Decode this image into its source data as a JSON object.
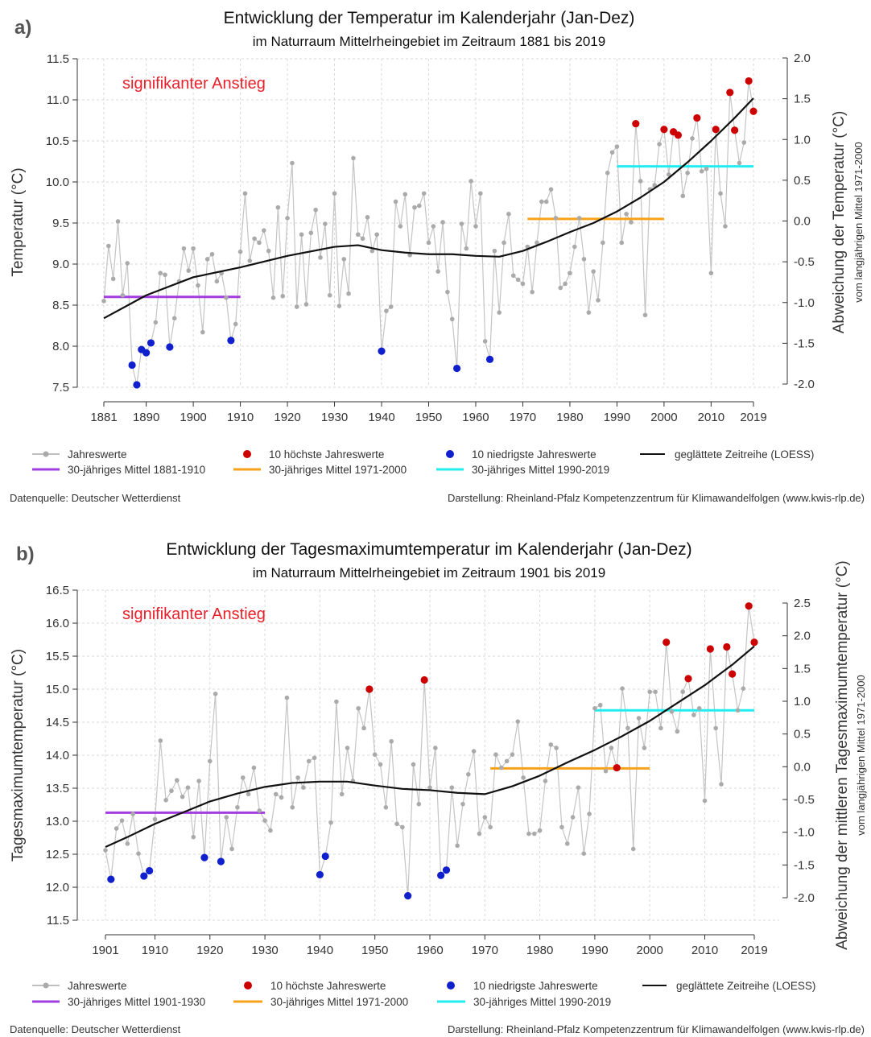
{
  "chart_data": [
    {
      "type": "line",
      "panel_label": "a)",
      "title": "Entwicklung der Temperatur im Kalenderjahr (Jan-Dez)",
      "subtitle": "im Naturraum Mittelrheingebiet im Zeitraum 1881 bis 2019",
      "annotation": "signifikanter Anstieg",
      "ylabel": "Temperatur (°C)",
      "y2label": "Abweichung der Temperatur (°C)",
      "y2label_small": "vom langjährigen Mittel 1971-2000",
      "xlim": [
        1881,
        2019
      ],
      "ylim": [
        7.5,
        11.5
      ],
      "y2lim": [
        -2.0,
        2.0
      ],
      "x_ticks": [
        "1881",
        "1890",
        "1900",
        "1910",
        "1920",
        "1930",
        "1940",
        "1950",
        "1960",
        "1970",
        "1980",
        "1990",
        "2000",
        "2010",
        "2019"
      ],
      "y_ticks": [
        "7.5",
        "8.0",
        "8.5",
        "9.0",
        "9.5",
        "10.0",
        "10.5",
        "11.0",
        "11.5"
      ],
      "y2_ticks": [
        "-2.0",
        "-1.5",
        "-1.0",
        "-0.5",
        "0.0",
        "0.5",
        "1.0",
        "1.5",
        "2.0"
      ],
      "grid": true,
      "legend_position": "bottom",
      "colors": {
        "annual": "#aaaaaa",
        "highest": "#cc0000",
        "lowest": "#1020cc",
        "loess": "#111111",
        "mean1": "#a23de0",
        "mean2": "#f7a21a",
        "mean3": "#22eef2",
        "annotation": "#e8202a"
      },
      "years_start": 1881,
      "annual_values": [
        8.55,
        9.22,
        8.82,
        9.52,
        8.62,
        9.01,
        7.77,
        7.53,
        7.96,
        7.92,
        8.04,
        8.29,
        8.89,
        8.87,
        7.99,
        8.34,
        8.79,
        9.19,
        8.92,
        9.19,
        8.74,
        8.17,
        9.06,
        9.12,
        8.79,
        8.89,
        8.59,
        8.07,
        8.27,
        9.15,
        9.86,
        9.04,
        9.31,
        9.26,
        9.41,
        9.16,
        8.59,
        9.69,
        8.61,
        9.56,
        10.23,
        8.48,
        9.36,
        8.51,
        9.38,
        9.66,
        9.08,
        9.49,
        8.62,
        9.86,
        8.49,
        9.06,
        8.64,
        10.29,
        9.36,
        9.31,
        9.57,
        9.16,
        9.36,
        7.94,
        8.43,
        8.48,
        9.76,
        9.46,
        9.85,
        9.11,
        9.69,
        9.71,
        9.86,
        9.26,
        9.46,
        8.91,
        9.51,
        8.66,
        8.33,
        7.73,
        9.49,
        9.19,
        10.01,
        9.46,
        9.86,
        8.06,
        7.84,
        9.16,
        8.41,
        9.26,
        9.61,
        8.86,
        8.81,
        8.76,
        9.21,
        8.66,
        9.26,
        9.76,
        9.76,
        9.91,
        9.56,
        8.71,
        8.76,
        8.89,
        9.21,
        9.56,
        9.06,
        8.41,
        8.91,
        8.56,
        9.26,
        10.11,
        10.36,
        10.43,
        9.26,
        9.61,
        9.51,
        10.71,
        10.01,
        8.38,
        9.91,
        9.96,
        10.46,
        10.64,
        10.09,
        10.61,
        10.57,
        9.83,
        10.11,
        10.53,
        10.78,
        10.13,
        10.16,
        8.89,
        10.64,
        9.86,
        9.46,
        11.09,
        10.63,
        10.23,
        10.48,
        11.23,
        10.86
      ],
      "highest_years": [
        1994,
        2000,
        2002,
        2003,
        2007,
        2011,
        2014,
        2015,
        2018,
        2019
      ],
      "lowest_years": [
        1887,
        1888,
        1889,
        1890,
        1891,
        1895,
        1908,
        1940,
        1956,
        1963
      ],
      "loess_points": [
        [
          1881,
          8.34
        ],
        [
          1890,
          8.62
        ],
        [
          1900,
          8.84
        ],
        [
          1910,
          8.96
        ],
        [
          1920,
          9.1
        ],
        [
          1930,
          9.21
        ],
        [
          1935,
          9.23
        ],
        [
          1940,
          9.17
        ],
        [
          1945,
          9.14
        ],
        [
          1950,
          9.12
        ],
        [
          1955,
          9.12
        ],
        [
          1960,
          9.1
        ],
        [
          1965,
          9.09
        ],
        [
          1970,
          9.16
        ],
        [
          1975,
          9.27
        ],
        [
          1980,
          9.39
        ],
        [
          1985,
          9.5
        ],
        [
          1990,
          9.64
        ],
        [
          1995,
          9.81
        ],
        [
          2000,
          10.0
        ],
        [
          2005,
          10.24
        ],
        [
          2010,
          10.5
        ],
        [
          2015,
          10.78
        ],
        [
          2019,
          11.02
        ]
      ],
      "means": [
        {
          "label": "30-jähriges Mittel 1881-1910",
          "x0": 1881,
          "x1": 1910,
          "value": 8.6
        },
        {
          "label": "30-jähriges Mittel 1971-2000",
          "x0": 1971,
          "x1": 2000,
          "value": 9.55
        },
        {
          "label": "30-jähriges Mittel 1990-2019",
          "x0": 1990,
          "x1": 2019,
          "value": 10.19
        }
      ],
      "legend": {
        "annual": "Jahreswerte",
        "highest": "10 höchste Jahreswerte",
        "lowest": "10 niedrigste Jahreswerte",
        "loess": "geglättete Zeitreihe (LOESS)"
      },
      "source": "Datenquelle: Deutscher Wetterdienst",
      "credit": "Darstellung: Rheinland-Pfalz Kompetenzzentrum für Klimawandelfolgen (www.kwis-rlp.de)"
    },
    {
      "type": "line",
      "panel_label": "b)",
      "title": "Entwicklung der Tagesmaximumtemperatur im Kalenderjahr (Jan-Dez)",
      "subtitle": "im Naturraum Mittelrheingebiet im Zeitraum 1901 bis 2019",
      "annotation": "signifikanter Anstieg",
      "ylabel": "Tagesmaximumtemperatur (°C)",
      "y2label": "Abweichung der mittleren Tagesmaximumtemperatur (°C)",
      "y2label_small": "vom langjährigen Mittel 1971-2000",
      "xlim": [
        1901,
        2019
      ],
      "ylim": [
        11.5,
        16.5
      ],
      "y2lim": [
        -2.0,
        2.5
      ],
      "x_ticks": [
        "1901",
        "1910",
        "1920",
        "1930",
        "1940",
        "1950",
        "1960",
        "1970",
        "1980",
        "1990",
        "2000",
        "2010",
        "2019"
      ],
      "y_ticks": [
        "11.5",
        "12.0",
        "12.5",
        "13.0",
        "13.5",
        "14.0",
        "14.5",
        "15.0",
        "15.5",
        "16.0",
        "16.5"
      ],
      "y2_ticks": [
        "-2.0",
        "-1.5",
        "-1.0",
        "-0.5",
        "0.0",
        "0.5",
        "1.0",
        "1.5",
        "2.0",
        "2.5"
      ],
      "grid": true,
      "legend_position": "bottom",
      "colors": {
        "annual": "#aaaaaa",
        "highest": "#cc0000",
        "lowest": "#1020cc",
        "loess": "#111111",
        "mean1": "#a23de0",
        "mean2": "#f7a21a",
        "mean3": "#22eef2",
        "annotation": "#e8202a"
      },
      "years_start": 1901,
      "annual_values": [
        12.56,
        12.12,
        12.89,
        13.01,
        12.66,
        13.11,
        12.51,
        12.17,
        12.25,
        13.03,
        14.22,
        13.32,
        13.46,
        13.62,
        13.37,
        13.51,
        12.76,
        13.61,
        12.45,
        13.91,
        14.93,
        12.39,
        13.06,
        12.58,
        13.21,
        13.66,
        13.41,
        13.81,
        13.16,
        13.01,
        12.86,
        13.41,
        13.36,
        14.87,
        13.21,
        13.66,
        13.51,
        13.91,
        13.96,
        12.19,
        12.47,
        12.98,
        14.81,
        13.41,
        14.11,
        13.61,
        14.71,
        14.41,
        15.0,
        14.01,
        13.86,
        13.21,
        14.21,
        12.96,
        12.91,
        11.87,
        13.86,
        13.26,
        15.14,
        13.51,
        14.11,
        12.18,
        12.26,
        13.51,
        12.63,
        13.26,
        13.71,
        14.06,
        12.81,
        13.06,
        12.91,
        14.01,
        13.81,
        13.91,
        14.01,
        14.51,
        13.66,
        12.81,
        12.81,
        12.86,
        13.61,
        14.16,
        14.11,
        12.91,
        12.66,
        13.06,
        13.51,
        12.51,
        13.11,
        14.71,
        14.76,
        13.76,
        14.11,
        13.81,
        15.01,
        14.41,
        12.58,
        14.56,
        14.11,
        14.96,
        14.96,
        14.41,
        15.71,
        14.66,
        14.36,
        14.96,
        15.16,
        14.61,
        14.71,
        13.31,
        15.61,
        14.41,
        13.56,
        15.64,
        15.23,
        14.68,
        15.01,
        16.26,
        15.71
      ],
      "highest_years": [
        1949,
        1959,
        1994,
        2003,
        2007,
        2011,
        2014,
        2015,
        2018,
        2019
      ],
      "lowest_years": [
        1902,
        1908,
        1909,
        1919,
        1922,
        1940,
        1941,
        1956,
        1962,
        1963
      ],
      "loess_points": [
        [
          1901,
          12.61
        ],
        [
          1905,
          12.76
        ],
        [
          1910,
          12.96
        ],
        [
          1915,
          13.13
        ],
        [
          1920,
          13.3
        ],
        [
          1925,
          13.42
        ],
        [
          1930,
          13.52
        ],
        [
          1935,
          13.58
        ],
        [
          1940,
          13.6
        ],
        [
          1945,
          13.6
        ],
        [
          1950,
          13.54
        ],
        [
          1955,
          13.49
        ],
        [
          1960,
          13.47
        ],
        [
          1965,
          13.43
        ],
        [
          1970,
          13.41
        ],
        [
          1975,
          13.53
        ],
        [
          1980,
          13.69
        ],
        [
          1985,
          13.89
        ],
        [
          1990,
          14.08
        ],
        [
          1995,
          14.29
        ],
        [
          2000,
          14.52
        ],
        [
          2005,
          14.79
        ],
        [
          2010,
          15.06
        ],
        [
          2015,
          15.37
        ],
        [
          2019,
          15.65
        ]
      ],
      "means": [
        {
          "label": "30-jähriges Mittel 1901-1930",
          "x0": 1901,
          "x1": 1930,
          "value": 13.13
        },
        {
          "label": "30-jähriges Mittel 1971-2000",
          "x0": 1971,
          "x1": 2000,
          "value": 13.8
        },
        {
          "label": "30-jähriges Mittel 1990-2019",
          "x0": 1990,
          "x1": 2019,
          "value": 14.68
        }
      ],
      "legend": {
        "annual": "Jahreswerte",
        "highest": "10 höchste Jahreswerte",
        "lowest": "10 niedrigste Jahreswerte",
        "loess": "geglättete Zeitreihe (LOESS)"
      },
      "source": "Datenquelle: Deutscher Wetterdienst",
      "credit": "Darstellung: Rheinland-Pfalz Kompetenzzentrum für Klimawandelfolgen (www.kwis-rlp.de)"
    }
  ]
}
